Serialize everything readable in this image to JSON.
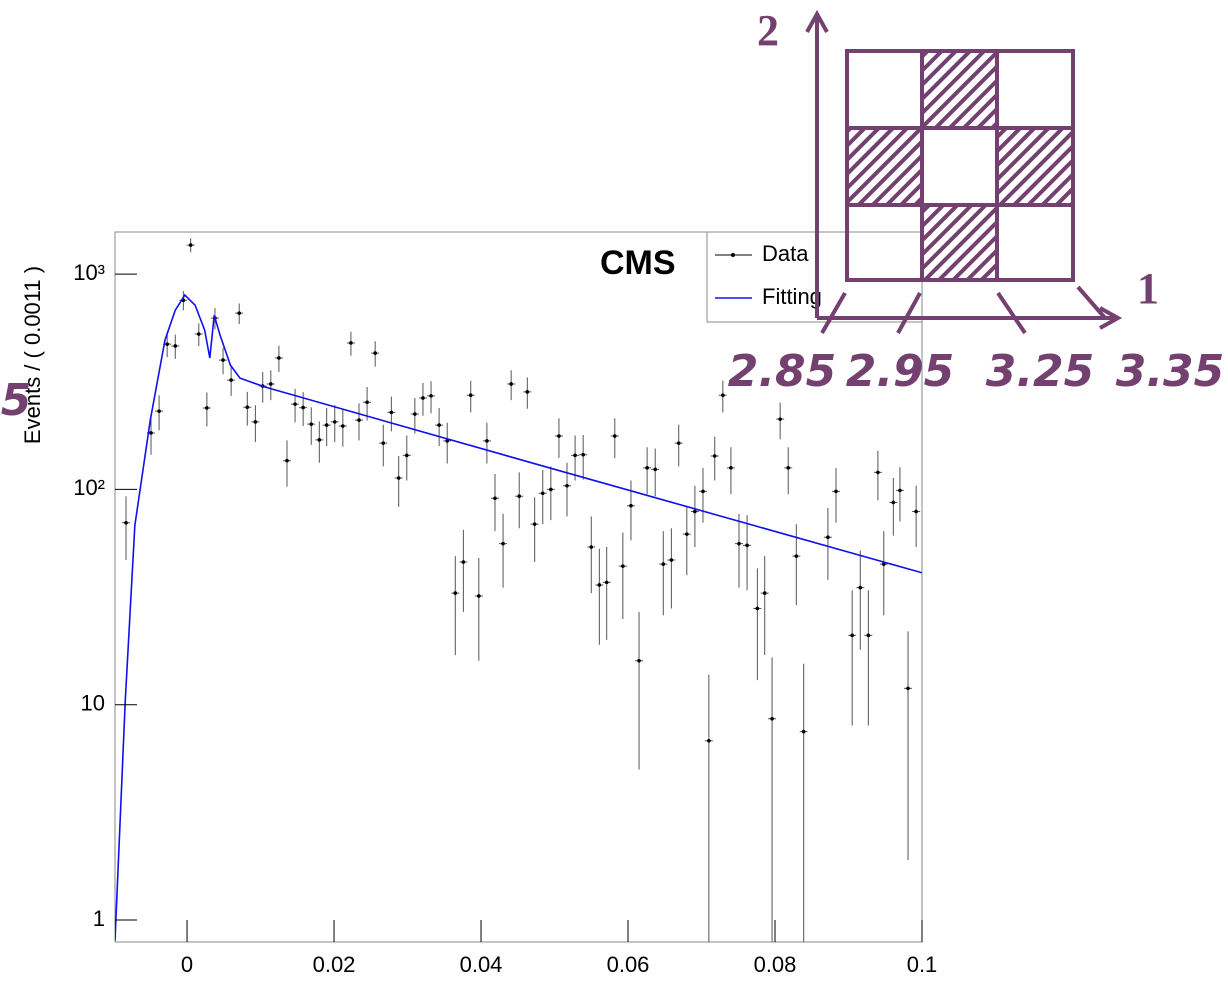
{
  "chart_data": {
    "type": "scatter",
    "yscale": "log",
    "ylabel": "Events / ( 0.0011 )",
    "annotation": "CMS",
    "xlim": [
      -0.0098,
      0.1
    ],
    "xticks": [
      0,
      0.02,
      0.04,
      0.06,
      0.08,
      0.1
    ],
    "ylim": [
      0.79,
      1570
    ],
    "yticks": [
      1,
      10,
      {
        "value": 100,
        "label": "10²"
      },
      {
        "value": 1000,
        "label": "10³"
      }
    ],
    "legend": "upper right",
    "series": [
      {
        "name": "Data",
        "color": "#000000",
        "x": [
          -0.0083,
          -0.0049,
          -0.0038,
          -0.0027,
          -0.0016,
          -0.0005,
          0.0005,
          0.0016,
          0.0027,
          0.0038,
          0.0049,
          0.006,
          0.0071,
          0.0082,
          0.0093,
          0.0103,
          0.0114,
          0.0125,
          0.0136,
          0.0147,
          0.0158,
          0.0169,
          0.018,
          0.019,
          0.0201,
          0.0212,
          0.0223,
          0.0234,
          0.0245,
          0.0256,
          0.0267,
          0.0278,
          0.0288,
          0.0299,
          0.031,
          0.0321,
          0.0332,
          0.0343,
          0.0354,
          0.0365,
          0.0376,
          0.0386,
          0.0397,
          0.0408,
          0.0419,
          0.043,
          0.0441,
          0.0452,
          0.0463,
          0.0473,
          0.0484,
          0.0495,
          0.0506,
          0.0517,
          0.0528,
          0.0539,
          0.055,
          0.0561,
          0.0571,
          0.0582,
          0.0593,
          0.0604,
          0.0615,
          0.0626,
          0.0637,
          0.0648,
          0.0659,
          0.0669,
          0.068,
          0.0691,
          0.0702,
          0.071,
          0.0718,
          0.0729,
          0.074,
          0.0751,
          0.0762,
          0.0776,
          0.0786,
          0.0796,
          0.0807,
          0.0818,
          0.0829,
          0.0839,
          0.0872,
          0.0883,
          0.0905,
          0.0916,
          0.0927,
          0.094,
          0.0948,
          0.0961,
          0.097,
          0.0981,
          0.0992
        ],
        "values": [
          70,
          183,
          231,
          473,
          464,
          757,
          1365,
          527,
          239,
          625,
          399,
          322,
          659,
          241,
          206,
          302,
          309,
          408,
          136,
          249,
          240,
          201,
          170,
          199,
          206,
          197,
          479,
          210,
          254,
          430,
          164,
          228,
          113,
          144,
          224,
          266,
          272,
          199,
          168,
          33,
          46,
          274,
          32,
          168,
          91,
          56,
          309,
          93,
          284,
          69,
          96,
          100,
          177,
          104,
          144,
          145,
          54,
          36,
          37,
          177,
          44,
          84,
          16,
          126,
          124,
          45,
          47,
          164,
          62,
          79,
          98,
          6.8,
          143,
          274,
          126,
          56,
          55,
          28,
          33,
          8.6,
          212,
          126,
          49,
          7.5,
          60,
          98,
          21,
          35,
          21,
          120,
          45,
          87,
          99,
          11.9,
          79
        ],
        "errors": [
          23,
          38,
          43,
          61,
          60,
          77,
          103,
          64,
          43,
          70,
          56,
          50,
          72,
          43,
          40,
          49,
          49,
          57,
          33,
          44,
          43,
          40,
          37,
          40,
          40,
          39,
          61,
          41,
          45,
          58,
          36,
          42,
          30,
          34,
          42,
          46,
          46,
          40,
          36,
          16,
          19,
          46,
          16,
          36,
          27,
          21,
          49,
          27,
          47,
          23,
          27,
          28,
          37,
          29,
          34,
          34,
          21,
          17,
          17,
          37,
          19,
          26,
          11,
          31,
          31,
          19,
          19,
          36,
          22,
          25,
          28,
          7,
          33,
          46,
          31,
          21,
          21,
          15,
          16,
          8,
          41,
          31,
          20,
          8,
          22,
          28,
          13,
          17,
          13,
          31,
          19,
          26,
          28,
          10,
          25
        ]
      },
      {
        "name": "Fitting",
        "type": "line",
        "color": "#1010ee",
        "x": [
          -0.0098,
          -0.0084,
          -0.0071,
          -0.005,
          -0.003,
          -0.0016,
          -0.0003,
          0.0011,
          0.0024,
          0.0031,
          0.0037,
          0.0045,
          0.0059,
          0.0072,
          0.0106,
          0.05,
          0.1
        ],
        "values": [
          0.8,
          10.5,
          68,
          210,
          494,
          680,
          800,
          718,
          550,
          408,
          645,
          520,
          378,
          329,
          299,
          124,
          41
        ]
      }
    ]
  },
  "overlay": {
    "axis_labels": [
      "2",
      "1"
    ],
    "bin_edges": [
      "2.85",
      "2.95",
      "3.25",
      "3.35"
    ],
    "marker": "5"
  }
}
